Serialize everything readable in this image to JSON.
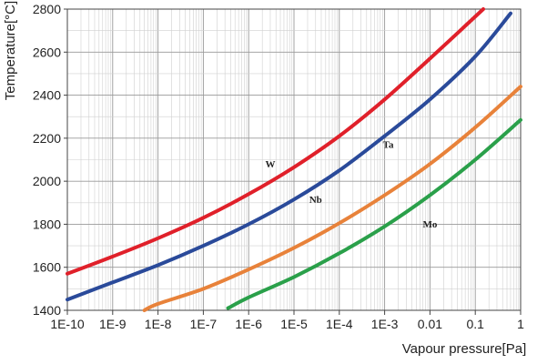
{
  "chart_data": {
    "type": "line",
    "xlabel": "Vapour pressure[Pa]",
    "ylabel": "Temperature[°C]",
    "x_scale": "log",
    "xlim": [
      1e-10,
      1
    ],
    "ylim": [
      1400,
      2800
    ],
    "x_ticks": [
      1e-10,
      1e-09,
      1e-08,
      1e-07,
      1e-06,
      1e-05,
      0.0001,
      0.001,
      0.01,
      0.1,
      1
    ],
    "x_tick_labels": [
      "1E-10",
      "1E-9",
      "1E-8",
      "1E-7",
      "1E-6",
      "1E-5",
      "1E-4",
      "1E-3",
      "0.01",
      "0.1",
      "1"
    ],
    "y_ticks": [
      1400,
      1600,
      1800,
      2000,
      2200,
      2400,
      2600,
      2800
    ],
    "y_tick_labels": [
      "1400",
      "1600",
      "1800",
      "2000",
      "2200",
      "2400",
      "2600",
      "2800"
    ],
    "grid": true,
    "legend": "none",
    "series": [
      {
        "name": "W",
        "color": "#e0202a",
        "x": [
          1e-10,
          1e-09,
          1e-08,
          1e-07,
          1e-06,
          1e-05,
          0.0001,
          0.001,
          0.01,
          0.15
        ],
        "y": [
          1570,
          1650,
          1735,
          1830,
          1940,
          2065,
          2210,
          2380,
          2570,
          2800
        ]
      },
      {
        "name": "Ta",
        "color": "#2a4a9a",
        "x": [
          1e-10,
          1e-09,
          1e-08,
          1e-07,
          1e-06,
          1e-05,
          0.0001,
          0.001,
          0.01,
          0.1,
          0.6
        ],
        "y": [
          1450,
          1530,
          1610,
          1700,
          1800,
          1915,
          2050,
          2210,
          2380,
          2580,
          2780
        ]
      },
      {
        "name": "Nb",
        "color": "#e8823a",
        "x": [
          5e-09,
          1e-08,
          1e-07,
          1e-06,
          1e-05,
          0.0001,
          0.001,
          0.01,
          0.1,
          1
        ],
        "y": [
          1400,
          1430,
          1500,
          1590,
          1690,
          1805,
          1935,
          2080,
          2250,
          2440
        ]
      },
      {
        "name": "Mo",
        "color": "#2aa04a",
        "x": [
          3.5e-07,
          1e-06,
          1e-05,
          0.0001,
          0.001,
          0.01,
          0.1,
          1
        ],
        "y": [
          1410,
          1460,
          1555,
          1665,
          1790,
          1935,
          2100,
          2285
        ]
      }
    ],
    "annotations": [
      {
        "text": "W",
        "x": 3e-06,
        "y": 2065
      },
      {
        "text": "Ta",
        "x": 0.0012,
        "y": 2155
      },
      {
        "text": "Nb",
        "x": 3e-05,
        "y": 1900
      },
      {
        "text": "Mo",
        "x": 0.01,
        "y": 1785
      }
    ]
  }
}
